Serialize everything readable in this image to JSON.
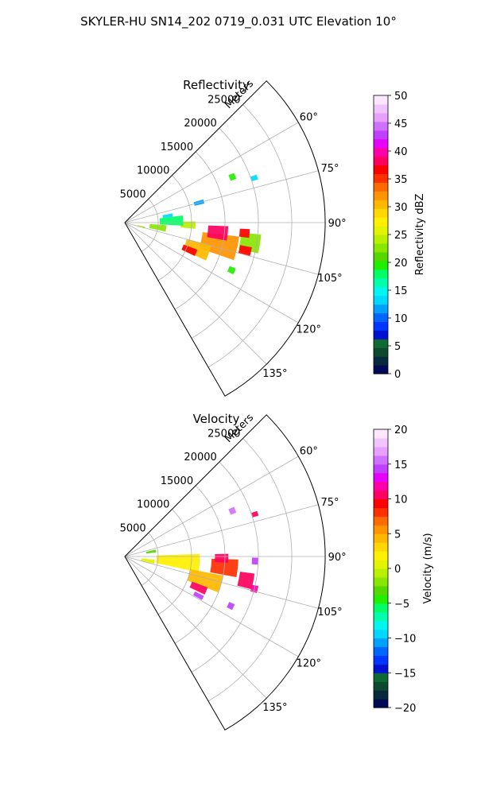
{
  "figure": {
    "suptitle": "SKYLER-HU  SN14_202  0719_0.031 UTC Elevation 10°"
  },
  "chart_data": [
    {
      "type": "heatmap",
      "title": "Reflectivity",
      "projection": "polar-sector",
      "theta_range_deg": [
        45,
        150
      ],
      "r_range_m": [
        0,
        30000
      ],
      "r_axis_label": "Meters",
      "r_ticks": [
        5000,
        10000,
        15000,
        20000,
        25000
      ],
      "r_tick_labels": [
        "5000",
        "10000",
        "15000",
        "20000",
        "25000"
      ],
      "theta_ticks_deg": [
        60,
        75,
        90,
        105,
        120,
        135
      ],
      "theta_tick_labels": [
        "60°",
        "75°",
        "90°",
        "105°",
        "120°",
        "135°"
      ],
      "grid": true,
      "colorbar": {
        "label": "Reflectivity dBZ",
        "range": [
          0,
          50
        ],
        "ticks": [
          0,
          5,
          10,
          15,
          20,
          25,
          30,
          35,
          40,
          45,
          50
        ],
        "tick_labels": [
          "0",
          "5",
          "10",
          "15",
          "20",
          "25",
          "30",
          "35",
          "40",
          "45",
          "50"
        ],
        "colors": [
          "#000a55",
          "#062a3c",
          "#0b4a2e",
          "#0e6a33",
          "#0012d0",
          "#0036ff",
          "#0066ff",
          "#00a0ff",
          "#00d8ff",
          "#00f6ee",
          "#00ffaa",
          "#00ff66",
          "#22ee00",
          "#55d800",
          "#88e600",
          "#b8f000",
          "#e2f400",
          "#fff000",
          "#ffd800",
          "#ffb800",
          "#ff9400",
          "#ff6a00",
          "#ff3000",
          "#ff0000",
          "#ff0060",
          "#ff00a8",
          "#e800ff",
          "#c040ff",
          "#d070ff",
          "#e8a0ff",
          "#f2c4ff",
          "#fde6ff"
        ]
      },
      "regions": [
        {
          "theta": 103,
          "r": 14500,
          "dtheta": 12,
          "dr": 5500,
          "value": 32
        },
        {
          "theta": 96,
          "r": 14000,
          "dtheta": 8,
          "dr": 3000,
          "value": 38
        },
        {
          "theta": 92,
          "r": 9500,
          "dtheta": 6,
          "dr": 2200,
          "value": 24
        },
        {
          "theta": 110,
          "r": 11500,
          "dtheta": 10,
          "dr": 3800,
          "value": 30
        },
        {
          "theta": 113,
          "r": 10500,
          "dtheta": 5,
          "dr": 2200,
          "value": 37
        },
        {
          "theta": 88,
          "r": 7000,
          "dtheta": 10,
          "dr": 3500,
          "value": 18
        },
        {
          "theta": 98,
          "r": 5000,
          "dtheta": 9,
          "dr": 2500,
          "value": 22
        },
        {
          "theta": 104,
          "r": 2500,
          "dtheta": 5,
          "dr": 1200,
          "value": 24
        },
        {
          "theta": 81,
          "r": 6500,
          "dtheta": 4,
          "dr": 1500,
          "value": 14
        },
        {
          "theta": 75,
          "r": 11500,
          "dtheta": 3,
          "dr": 1500,
          "value": 12
        },
        {
          "theta": 67,
          "r": 17500,
          "dtheta": 3,
          "dr": 900,
          "value": 20
        },
        {
          "theta": 71,
          "r": 20500,
          "dtheta": 2,
          "dr": 1000,
          "value": 13
        },
        {
          "theta": 114,
          "r": 17500,
          "dtheta": 3,
          "dr": 1000,
          "value": 20
        },
        {
          "theta": 99,
          "r": 19000,
          "dtheta": 8,
          "dr": 3000,
          "value": 22
        },
        {
          "theta": 103,
          "r": 18500,
          "dtheta": 4,
          "dr": 1800,
          "value": 36
        },
        {
          "theta": 95,
          "r": 18000,
          "dtheta": 4,
          "dr": 1500,
          "value": 36
        }
      ]
    },
    {
      "type": "heatmap",
      "title": "Velocity",
      "projection": "polar-sector",
      "theta_range_deg": [
        45,
        150
      ],
      "r_range_m": [
        0,
        30000
      ],
      "r_axis_label": "Meters",
      "r_ticks": [
        5000,
        10000,
        15000,
        20000,
        25000
      ],
      "r_tick_labels": [
        "5000",
        "10000",
        "15000",
        "20000",
        "25000"
      ],
      "theta_ticks_deg": [
        60,
        75,
        90,
        105,
        120,
        135
      ],
      "theta_tick_labels": [
        "60°",
        "75°",
        "90°",
        "105°",
        "120°",
        "135°"
      ],
      "grid": true,
      "colorbar": {
        "label": "Velocity (m/s)",
        "range": [
          -20,
          20
        ],
        "ticks": [
          -20,
          -15,
          -10,
          -5,
          0,
          5,
          10,
          15,
          20
        ],
        "tick_labels": [
          "−20",
          "−15",
          "−10",
          "−5",
          "0",
          "5",
          "10",
          "15",
          "20"
        ],
        "colors": [
          "#000a55",
          "#062a3c",
          "#0b4a2e",
          "#0e6a33",
          "#0012d0",
          "#0036ff",
          "#0066ff",
          "#00a0ff",
          "#00d8ff",
          "#00f6ee",
          "#00ffaa",
          "#00ff66",
          "#22ee00",
          "#55d800",
          "#88e600",
          "#b8f000",
          "#e2f400",
          "#fff000",
          "#ffd800",
          "#ffb800",
          "#ff9400",
          "#ff6a00",
          "#ff3000",
          "#ff0000",
          "#ff0060",
          "#ff00a8",
          "#e800ff",
          "#c040ff",
          "#d070ff",
          "#e8a0ff",
          "#f2c4ff",
          "#fde6ff"
        ]
      },
      "regions": [
        {
          "theta": 95,
          "r": 8000,
          "dtheta": 14,
          "dr": 6500,
          "value": 2
        },
        {
          "theta": 80,
          "r": 4000,
          "dtheta": 5,
          "dr": 1500,
          "value": -3
        },
        {
          "theta": 106,
          "r": 12500,
          "dtheta": 10,
          "dr": 5000,
          "value": 4
        },
        {
          "theta": 113,
          "r": 12000,
          "dtheta": 5,
          "dr": 2500,
          "value": 11
        },
        {
          "theta": 118,
          "r": 12500,
          "dtheta": 3,
          "dr": 1500,
          "value": 14
        },
        {
          "theta": 96,
          "r": 15000,
          "dtheta": 9,
          "dr": 4000,
          "value": 8
        },
        {
          "theta": 91,
          "r": 14500,
          "dtheta": 5,
          "dr": 2000,
          "value": 11
        },
        {
          "theta": 101,
          "r": 18500,
          "dtheta": 7,
          "dr": 2200,
          "value": 10
        },
        {
          "theta": 104,
          "r": 20000,
          "dtheta": 3,
          "dr": 1000,
          "value": 12
        },
        {
          "theta": 92,
          "r": 19500,
          "dtheta": 3,
          "dr": 900,
          "value": 14
        },
        {
          "theta": 100,
          "r": 3500,
          "dtheta": 8,
          "dr": 2000,
          "value": 1
        },
        {
          "theta": 67,
          "r": 17500,
          "dtheta": 3,
          "dr": 900,
          "value": 15
        },
        {
          "theta": 72,
          "r": 20500,
          "dtheta": 2,
          "dr": 900,
          "value": 11
        },
        {
          "theta": 115,
          "r": 17500,
          "dtheta": 3,
          "dr": 900,
          "value": 14
        }
      ]
    }
  ]
}
